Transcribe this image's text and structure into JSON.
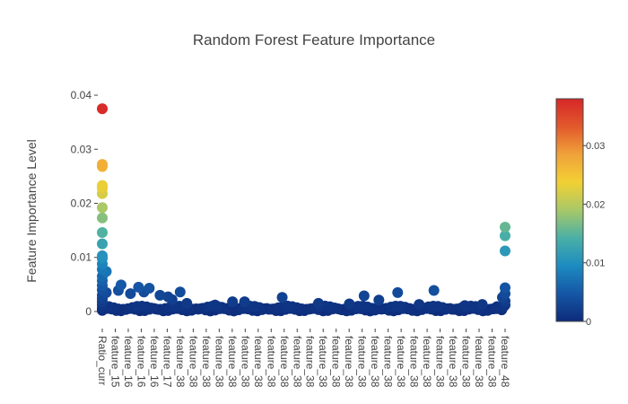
{
  "chart_data": {
    "type": "scatter",
    "title": "Random Forest Feature Importance",
    "xlabel": "",
    "ylabel": "Feature Importance Level",
    "ylim": [
      -0.0025,
      0.041
    ],
    "y_ticks": [
      0,
      0.01,
      0.02,
      0.03,
      0.04
    ],
    "y_tick_labels": [
      "0",
      "0.01",
      "0.02",
      "0.03",
      "0.04"
    ],
    "x_tick_labels": [
      "Ratio_curr",
      "feature_15",
      "feature_16",
      "feature_16",
      "feature_16",
      "feature_17",
      "feature_38",
      "feature_38",
      "feature_38",
      "feature_38",
      "feature_38",
      "feature_38",
      "feature_38",
      "feature_38",
      "feature_38",
      "feature_38",
      "feature_38",
      "feature_38",
      "feature_38",
      "feature_38",
      "feature_38",
      "feature_38",
      "feature_38",
      "feature_38",
      "feature_38",
      "feature_38",
      "feature_38",
      "feature_38",
      "feature_38",
      "feature_38",
      "feature_38",
      "feature_48"
    ],
    "grid": false,
    "legend": "none",
    "colorbar": {
      "range": [
        0,
        0.038
      ],
      "ticks": [
        0,
        0.01,
        0.02,
        0.03
      ],
      "tick_labels": [
        "0",
        "0.01",
        "0.02",
        "0.03"
      ],
      "colorscale": [
        "#0d2b7a",
        "#1557a6",
        "#1d8bc0",
        "#4ab0a6",
        "#a8c868",
        "#f2d034",
        "#f0a23a",
        "#e2592c",
        "#d62728"
      ]
    },
    "points": [
      {
        "pos": 0.0,
        "v": 0.0375
      },
      {
        "pos": 0.0,
        "v": 0.0272
      },
      {
        "pos": 0.0,
        "v": 0.0268
      },
      {
        "pos": 0.0,
        "v": 0.0233
      },
      {
        "pos": 0.0,
        "v": 0.0228
      },
      {
        "pos": 0.0,
        "v": 0.0218
      },
      {
        "pos": 0.0,
        "v": 0.0192
      },
      {
        "pos": 0.0,
        "v": 0.0173
      },
      {
        "pos": 0.0,
        "v": 0.0146
      },
      {
        "pos": 0.0,
        "v": 0.0125
      },
      {
        "pos": 0.0,
        "v": 0.0103
      },
      {
        "pos": 0.0,
        "v": 0.0098
      },
      {
        "pos": 0.0,
        "v": 0.0088
      },
      {
        "pos": 0.0,
        "v": 0.0078
      },
      {
        "pos": 0.3,
        "v": 0.0074
      },
      {
        "pos": 0.0,
        "v": 0.0065
      },
      {
        "pos": 0.0,
        "v": 0.0057
      },
      {
        "pos": 0.0,
        "v": 0.0048
      },
      {
        "pos": 0.0,
        "v": 0.004
      },
      {
        "pos": 0.3,
        "v": 0.0035
      },
      {
        "pos": 0.0,
        "v": 0.003
      },
      {
        "pos": 0.0,
        "v": 0.0024
      },
      {
        "pos": 0.0,
        "v": 0.0018
      },
      {
        "pos": 0.0,
        "v": 0.0012
      },
      {
        "pos": 0.0,
        "v": 0.0006
      },
      {
        "pos": 0.0,
        "v": 0.0002
      },
      {
        "pos": 1.4,
        "v": 0.0049
      },
      {
        "pos": 1.2,
        "v": 0.0039
      },
      {
        "pos": 2.1,
        "v": 0.0033
      },
      {
        "pos": 2.7,
        "v": 0.0045
      },
      {
        "pos": 3.5,
        "v": 0.0043
      },
      {
        "pos": 3.1,
        "v": 0.0036
      },
      {
        "pos": 4.3,
        "v": 0.003
      },
      {
        "pos": 4.9,
        "v": 0.0027
      },
      {
        "pos": 5.8,
        "v": 0.0036
      },
      {
        "pos": 5.2,
        "v": 0.0022
      },
      {
        "pos": 6.3,
        "v": 0.0015
      },
      {
        "pos": 8.4,
        "v": 0.0012
      },
      {
        "pos": 9.7,
        "v": 0.0018
      },
      {
        "pos": 10.6,
        "v": 0.0018
      },
      {
        "pos": 13.4,
        "v": 0.0026
      },
      {
        "pos": 16.1,
        "v": 0.0015
      },
      {
        "pos": 18.4,
        "v": 0.0014
      },
      {
        "pos": 19.5,
        "v": 0.0029
      },
      {
        "pos": 20.6,
        "v": 0.0021
      },
      {
        "pos": 22.0,
        "v": 0.0035
      },
      {
        "pos": 23.6,
        "v": 0.0013
      },
      {
        "pos": 24.7,
        "v": 0.0039
      },
      {
        "pos": 27.0,
        "v": 0.0011
      },
      {
        "pos": 28.3,
        "v": 0.0013
      },
      {
        "pos": 29.4,
        "v": 0.0009
      },
      {
        "pos": 30.0,
        "v": 0.0156
      },
      {
        "pos": 30.0,
        "v": 0.014
      },
      {
        "pos": 30.0,
        "v": 0.0112
      },
      {
        "pos": 30.0,
        "v": 0.0044
      },
      {
        "pos": 30.0,
        "v": 0.0033
      },
      {
        "pos": 29.8,
        "v": 0.0026
      },
      {
        "pos": 30.0,
        "v": 0.0019
      },
      {
        "pos": 30.0,
        "v": 0.0012
      }
    ]
  }
}
